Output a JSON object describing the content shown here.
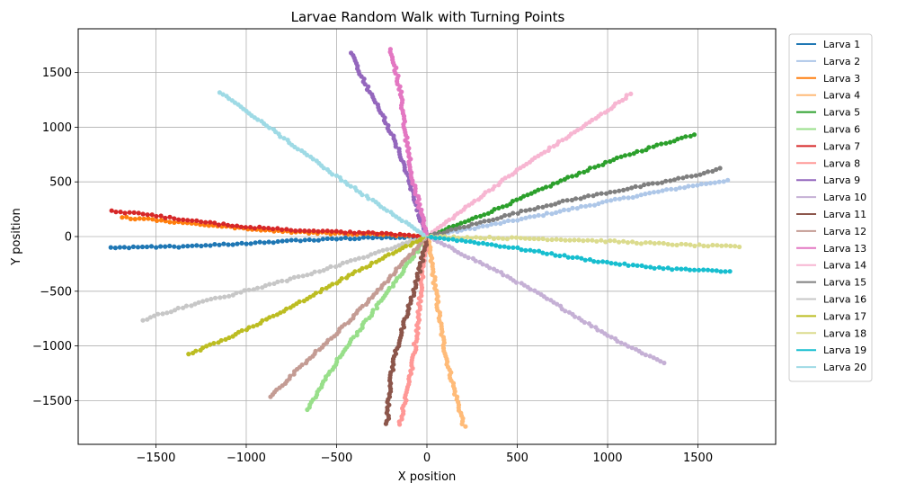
{
  "chart_data": {
    "type": "line",
    "title": "Larvae Random Walk with Turning Points",
    "xlabel": "X position",
    "ylabel": "Y position",
    "xlim": [
      -1930,
      1930
    ],
    "ylim": [
      -1900,
      1900
    ],
    "xticks": [
      -1500,
      -1000,
      -500,
      0,
      500,
      1000,
      1500
    ],
    "yticks": [
      -1500,
      -1000,
      -500,
      0,
      500,
      1000,
      1500
    ],
    "grid": true,
    "legend_position": "outside-right",
    "series": [
      {
        "name": "Larva 1",
        "color": "#1f77b4",
        "end": [
          -1750,
          -90
        ]
      },
      {
        "name": "Larva 2",
        "color": "#aec7e8",
        "end": [
          1665,
          515
        ]
      },
      {
        "name": "Larva 3",
        "color": "#ff7f0e",
        "end": [
          -1690,
          135
        ]
      },
      {
        "name": "Larva 4",
        "color": "#ffbb78",
        "end": [
          185,
          -1740
        ]
      },
      {
        "name": "Larva 5",
        "color": "#2ca02c",
        "end": [
          1465,
          955
        ]
      },
      {
        "name": "Larva 6",
        "color": "#98df8a",
        "end": [
          -670,
          -1580
        ]
      },
      {
        "name": "Larva 7",
        "color": "#d62728",
        "end": [
          -1750,
          190
        ]
      },
      {
        "name": "Larva 8",
        "color": "#ff9896",
        "end": [
          -130,
          -1720
        ]
      },
      {
        "name": "Larva 9",
        "color": "#9467bd",
        "end": [
          -370,
          1690
        ]
      },
      {
        "name": "Larva 10",
        "color": "#c5b0d5",
        "end": [
          1330,
          -1135
        ]
      },
      {
        "name": "Larva 11",
        "color": "#8c564b",
        "end": [
          -240,
          -1710
        ]
      },
      {
        "name": "Larva 12",
        "color": "#c49c94",
        "end": [
          -840,
          -1480
        ]
      },
      {
        "name": "Larva 13",
        "color": "#e377c2",
        "end": [
          -225,
          1710
        ]
      },
      {
        "name": "Larva 14",
        "color": "#f7b6d2",
        "end": [
          1110,
          1320
        ]
      },
      {
        "name": "Larva 15",
        "color": "#7f7f7f",
        "end": [
          1610,
          655
        ]
      },
      {
        "name": "Larva 16",
        "color": "#c7c7c7",
        "end": [
          -1560,
          -790
        ]
      },
      {
        "name": "Larva 17",
        "color": "#bcbd22",
        "end": [
          -1310,
          -1085
        ]
      },
      {
        "name": "Larva 18",
        "color": "#dbdb8d",
        "end": [
          1730,
          -75
        ]
      },
      {
        "name": "Larva 19",
        "color": "#17becf",
        "end": [
          1670,
          -350
        ]
      },
      {
        "name": "Larva 20",
        "color": "#9edae5",
        "end": [
          -1160,
          1305
        ]
      }
    ]
  }
}
